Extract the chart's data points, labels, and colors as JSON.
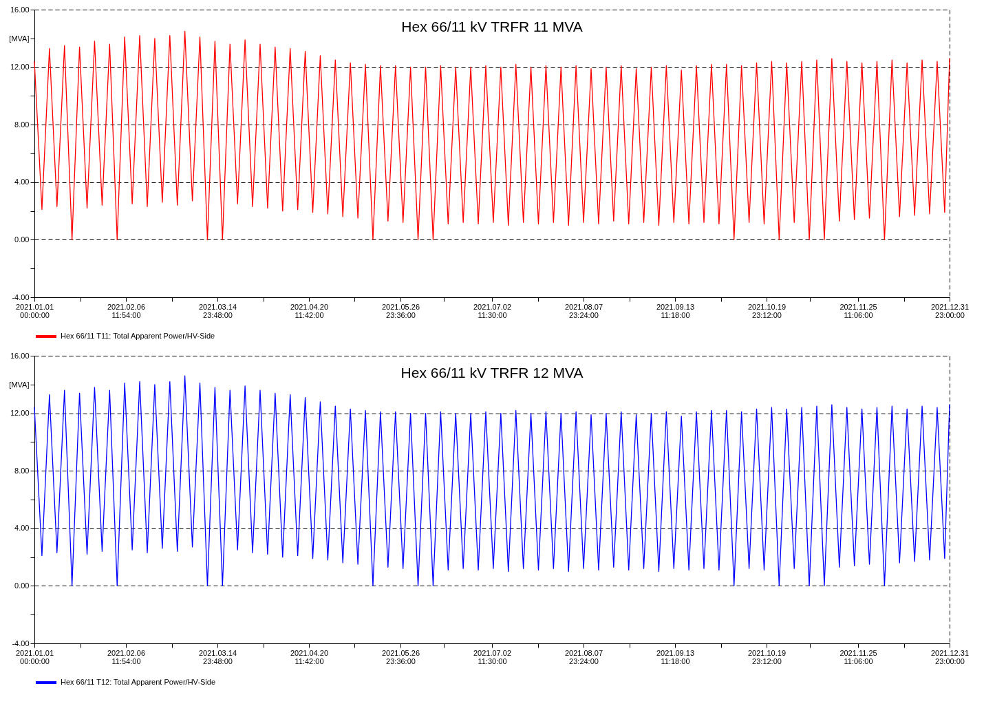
{
  "chart_data": [
    {
      "type": "line",
      "title": "Hex 66/11 kV TRFR 11 MVA",
      "ylabel": "[MVA]",
      "grid": true,
      "legend": "bottom left",
      "line_style": "solid",
      "xlim": [
        "2021-01-01T00:00",
        "2021-12-31T23:00"
      ],
      "ylim": [
        -4,
        16
      ],
      "xticks": [
        {
          "value": "2021-01-01T00:00",
          "label": "2021.01.01 00:00:00"
        },
        {
          "value": "2021-01-19T05:57",
          "label": null
        },
        {
          "value": "2021-02-06T11:54",
          "label": "2021.02.06 11:54:00"
        },
        {
          "value": "2021-02-24T17:51",
          "label": null
        },
        {
          "value": "2021-03-14T23:48",
          "label": "2021.03.14 23:48:00"
        },
        {
          "value": "2021-04-02T05:45",
          "label": null
        },
        {
          "value": "2021-04-20T11:42",
          "label": "2021.04.20 11:42:00"
        },
        {
          "value": "2021-05-08T17:39",
          "label": null
        },
        {
          "value": "2021-05-26T23:36",
          "label": "2021.05.26 23:36:00"
        },
        {
          "value": "2021-06-13T05:33",
          "label": null
        },
        {
          "value": "2021-07-02T11:30",
          "label": "2021.07.02 11:30:00"
        },
        {
          "value": "2021-07-20T17:27",
          "label": null
        },
        {
          "value": "2021-08-07T23:24",
          "label": "2021.08.07 23:24:00"
        },
        {
          "value": "2021-08-26T05:21",
          "label": null
        },
        {
          "value": "2021-09-13T11:18",
          "label": "2021.09.13 11:18:00"
        },
        {
          "value": "2021-10-01T17:15",
          "label": null
        },
        {
          "value": "2021-10-19T23:12",
          "label": "2021.10.19 23:12:00"
        },
        {
          "value": "2021-11-06T05:09",
          "label": null
        },
        {
          "value": "2021-11-25T11:06",
          "label": "2021.11.25 11:06:00"
        },
        {
          "value": "2021-12-13T17:03",
          "label": null
        },
        {
          "value": "2021-12-31T23:00",
          "label": "2021.12.31 23:00:00"
        }
      ],
      "yticks": [
        {
          "value": -4,
          "label": "-4.00"
        },
        {
          "value": -2,
          "label": null
        },
        {
          "value": 0,
          "label": "0.00"
        },
        {
          "value": 2,
          "label": null
        },
        {
          "value": 4,
          "label": "4.00"
        },
        {
          "value": 6,
          "label": null
        },
        {
          "value": 8,
          "label": "8.00"
        },
        {
          "value": 10,
          "label": null
        },
        {
          "value": 12,
          "label": "12.00"
        },
        {
          "value": 14,
          "label": null
        },
        {
          "value": 16,
          "label": "16.00"
        }
      ],
      "x": [
        "2021-01-01",
        "2021-01-04",
        "2021-01-07",
        "2021-01-10",
        "2021-01-13",
        "2021-01-16",
        "2021-01-19",
        "2021-01-22",
        "2021-01-25",
        "2021-01-28",
        "2021-01-31",
        "2021-02-03",
        "2021-02-06",
        "2021-02-09",
        "2021-02-12",
        "2021-02-15",
        "2021-02-18",
        "2021-02-21",
        "2021-02-24",
        "2021-02-27",
        "2021-03-02",
        "2021-03-05",
        "2021-03-08",
        "2021-03-11",
        "2021-03-14",
        "2021-03-17",
        "2021-03-20",
        "2021-03-23",
        "2021-03-26",
        "2021-03-29",
        "2021-04-01",
        "2021-04-04",
        "2021-04-07",
        "2021-04-10",
        "2021-04-13",
        "2021-04-16",
        "2021-04-19",
        "2021-04-22",
        "2021-04-25",
        "2021-04-28",
        "2021-05-01",
        "2021-05-04",
        "2021-05-07",
        "2021-05-10",
        "2021-05-13",
        "2021-05-16",
        "2021-05-19",
        "2021-05-22",
        "2021-05-25",
        "2021-05-28",
        "2021-05-31",
        "2021-06-03",
        "2021-06-06",
        "2021-06-09",
        "2021-06-12",
        "2021-06-15",
        "2021-06-18",
        "2021-06-21",
        "2021-06-24",
        "2021-06-27",
        "2021-06-30",
        "2021-07-03",
        "2021-07-06",
        "2021-07-09",
        "2021-07-12",
        "2021-07-15",
        "2021-07-18",
        "2021-07-21",
        "2021-07-24",
        "2021-07-27",
        "2021-07-30",
        "2021-08-02",
        "2021-08-05",
        "2021-08-08",
        "2021-08-11",
        "2021-08-14",
        "2021-08-17",
        "2021-08-20",
        "2021-08-23",
        "2021-08-26",
        "2021-08-29",
        "2021-09-01",
        "2021-09-04",
        "2021-09-07",
        "2021-09-10",
        "2021-09-13",
        "2021-09-16",
        "2021-09-19",
        "2021-09-22",
        "2021-09-25",
        "2021-09-28",
        "2021-10-01",
        "2021-10-04",
        "2021-10-07",
        "2021-10-10",
        "2021-10-13",
        "2021-10-16",
        "2021-10-19",
        "2021-10-22",
        "2021-10-25",
        "2021-10-28",
        "2021-10-31",
        "2021-11-03",
        "2021-11-06",
        "2021-11-09",
        "2021-11-12",
        "2021-11-15",
        "2021-11-18",
        "2021-11-21",
        "2021-11-24",
        "2021-11-27",
        "2021-11-30",
        "2021-12-03",
        "2021-12-06",
        "2021-12-09",
        "2021-12-12",
        "2021-12-15",
        "2021-12-18",
        "2021-12-21",
        "2021-12-24",
        "2021-12-27",
        "2021-12-30",
        "2021-12-31T23:00"
      ],
      "series": [
        {
          "name": "Hex 66/11 T11: Total Apparent Power/HV-Side",
          "color": "#ff0000",
          "values": [
            12.4,
            2.1,
            13.3,
            2.3,
            13.5,
            0,
            13.4,
            2.2,
            13.8,
            2.4,
            13.6,
            0,
            14.1,
            2.5,
            14.2,
            2.3,
            14.0,
            2.6,
            14.2,
            2.4,
            14.5,
            2.7,
            14.1,
            0,
            13.8,
            0,
            13.6,
            2.5,
            13.9,
            2.3,
            13.6,
            2.2,
            13.4,
            2.0,
            13.3,
            2.1,
            13.1,
            1.9,
            12.8,
            1.8,
            12.5,
            1.6,
            12.3,
            1.5,
            12.2,
            0,
            12.1,
            1.3,
            12.1,
            1.2,
            12.0,
            0,
            12.0,
            0,
            12.1,
            1.1,
            12.0,
            1.2,
            12.0,
            1.1,
            12.1,
            1.2,
            12.0,
            1.0,
            12.2,
            1.2,
            12.0,
            1.1,
            12.1,
            1.2,
            12.0,
            1.0,
            12.1,
            1.2,
            11.9,
            1.1,
            12.0,
            1.3,
            12.1,
            1.1,
            11.9,
            1.2,
            12.0,
            1.0,
            12.1,
            1.2,
            11.8,
            1.1,
            12.1,
            1.2,
            12.2,
            1.1,
            12.2,
            0,
            12.1,
            1.2,
            12.3,
            1.1,
            12.4,
            0,
            12.3,
            1.2,
            12.4,
            0,
            12.5,
            0,
            12.6,
            1.3,
            12.4,
            1.4,
            12.3,
            1.5,
            12.4,
            0,
            12.5,
            1.6,
            12.3,
            1.7,
            12.5,
            1.8,
            12.4,
            1.9,
            12.6
          ]
        }
      ]
    },
    {
      "type": "line",
      "title": "Hex 66/11 kV TRFR 12 MVA",
      "ylabel": "[MVA]",
      "grid": true,
      "legend": "bottom left",
      "line_style": "solid",
      "xlim": [
        "2021-01-01T00:00",
        "2021-12-31T23:00"
      ],
      "ylim": [
        -4,
        16
      ],
      "xticks": [
        {
          "value": "2021-01-01T00:00",
          "label": "2021.01.01 00:00:00"
        },
        {
          "value": "2021-01-19T05:57",
          "label": null
        },
        {
          "value": "2021-02-06T11:54",
          "label": "2021.02.06 11:54:00"
        },
        {
          "value": "2021-02-24T17:51",
          "label": null
        },
        {
          "value": "2021-03-14T23:48",
          "label": "2021.03.14 23:48:00"
        },
        {
          "value": "2021-04-02T05:45",
          "label": null
        },
        {
          "value": "2021-04-20T11:42",
          "label": "2021.04.20 11:42:00"
        },
        {
          "value": "2021-05-08T17:39",
          "label": null
        },
        {
          "value": "2021-05-26T23:36",
          "label": "2021.05.26 23:36:00"
        },
        {
          "value": "2021-06-13T05:33",
          "label": null
        },
        {
          "value": "2021-07-02T11:30",
          "label": "2021.07.02 11:30:00"
        },
        {
          "value": "2021-07-20T17:27",
          "label": null
        },
        {
          "value": "2021-08-07T23:24",
          "label": "2021.08.07 23:24:00"
        },
        {
          "value": "2021-08-26T05:21",
          "label": null
        },
        {
          "value": "2021-09-13T11:18",
          "label": "2021.09.13 11:18:00"
        },
        {
          "value": "2021-10-01T17:15",
          "label": null
        },
        {
          "value": "2021-10-19T23:12",
          "label": "2021.10.19 23:12:00"
        },
        {
          "value": "2021-11-06T05:09",
          "label": null
        },
        {
          "value": "2021-11-25T11:06",
          "label": "2021.11.25 11:06:00"
        },
        {
          "value": "2021-12-13T17:03",
          "label": null
        },
        {
          "value": "2021-12-31T23:00",
          "label": "2021.12.31 23:00:00"
        }
      ],
      "yticks": [
        {
          "value": -4,
          "label": "-4.00"
        },
        {
          "value": -2,
          "label": null
        },
        {
          "value": 0,
          "label": "0.00"
        },
        {
          "value": 2,
          "label": null
        },
        {
          "value": 4,
          "label": "4.00"
        },
        {
          "value": 6,
          "label": null
        },
        {
          "value": 8,
          "label": "8.00"
        },
        {
          "value": 10,
          "label": null
        },
        {
          "value": 12,
          "label": "12.00"
        },
        {
          "value": 14,
          "label": null
        },
        {
          "value": 16,
          "label": "16.00"
        }
      ],
      "x": [
        "2021-01-01",
        "2021-01-04",
        "2021-01-07",
        "2021-01-10",
        "2021-01-13",
        "2021-01-16",
        "2021-01-19",
        "2021-01-22",
        "2021-01-25",
        "2021-01-28",
        "2021-01-31",
        "2021-02-03",
        "2021-02-06",
        "2021-02-09",
        "2021-02-12",
        "2021-02-15",
        "2021-02-18",
        "2021-02-21",
        "2021-02-24",
        "2021-02-27",
        "2021-03-02",
        "2021-03-05",
        "2021-03-08",
        "2021-03-11",
        "2021-03-14",
        "2021-03-17",
        "2021-03-20",
        "2021-03-23",
        "2021-03-26",
        "2021-03-29",
        "2021-04-01",
        "2021-04-04",
        "2021-04-07",
        "2021-04-10",
        "2021-04-13",
        "2021-04-16",
        "2021-04-19",
        "2021-04-22",
        "2021-04-25",
        "2021-04-28",
        "2021-05-01",
        "2021-05-04",
        "2021-05-07",
        "2021-05-10",
        "2021-05-13",
        "2021-05-16",
        "2021-05-19",
        "2021-05-22",
        "2021-05-25",
        "2021-05-28",
        "2021-05-31",
        "2021-06-03",
        "2021-06-06",
        "2021-06-09",
        "2021-06-12",
        "2021-06-15",
        "2021-06-18",
        "2021-06-21",
        "2021-06-24",
        "2021-06-27",
        "2021-06-30",
        "2021-07-03",
        "2021-07-06",
        "2021-07-09",
        "2021-07-12",
        "2021-07-15",
        "2021-07-18",
        "2021-07-21",
        "2021-07-24",
        "2021-07-27",
        "2021-07-30",
        "2021-08-02",
        "2021-08-05",
        "2021-08-08",
        "2021-08-11",
        "2021-08-14",
        "2021-08-17",
        "2021-08-20",
        "2021-08-23",
        "2021-08-26",
        "2021-08-29",
        "2021-09-01",
        "2021-09-04",
        "2021-09-07",
        "2021-09-10",
        "2021-09-13",
        "2021-09-16",
        "2021-09-19",
        "2021-09-22",
        "2021-09-25",
        "2021-09-28",
        "2021-10-01",
        "2021-10-04",
        "2021-10-07",
        "2021-10-10",
        "2021-10-13",
        "2021-10-16",
        "2021-10-19",
        "2021-10-22",
        "2021-10-25",
        "2021-10-28",
        "2021-10-31",
        "2021-11-03",
        "2021-11-06",
        "2021-11-09",
        "2021-11-12",
        "2021-11-15",
        "2021-11-18",
        "2021-11-21",
        "2021-11-24",
        "2021-11-27",
        "2021-11-30",
        "2021-12-03",
        "2021-12-06",
        "2021-12-09",
        "2021-12-12",
        "2021-12-15",
        "2021-12-18",
        "2021-12-21",
        "2021-12-24",
        "2021-12-27",
        "2021-12-30",
        "2021-12-31T23:00"
      ],
      "series": [
        {
          "name": "Hex 66/11 T12: Total Apparent Power/HV-Side",
          "color": "#0000ff",
          "values": [
            12.4,
            2.1,
            13.3,
            2.3,
            13.6,
            0,
            13.4,
            2.2,
            13.8,
            2.4,
            13.6,
            0,
            14.1,
            2.5,
            14.2,
            2.3,
            14.0,
            2.6,
            14.2,
            2.4,
            14.6,
            2.7,
            14.1,
            0,
            13.8,
            0,
            13.6,
            2.5,
            13.9,
            2.3,
            13.6,
            2.2,
            13.4,
            2.0,
            13.3,
            2.1,
            13.1,
            1.9,
            12.8,
            1.8,
            12.5,
            1.6,
            12.3,
            1.5,
            12.2,
            0,
            12.1,
            1.3,
            12.1,
            1.2,
            12.0,
            0,
            12.0,
            0,
            12.1,
            1.1,
            12.0,
            1.2,
            12.0,
            1.1,
            12.1,
            1.2,
            12.0,
            1.0,
            12.2,
            1.2,
            12.0,
            1.1,
            12.1,
            1.2,
            12.0,
            1.0,
            12.1,
            1.2,
            11.9,
            1.1,
            12.0,
            1.3,
            12.1,
            1.1,
            11.9,
            1.2,
            12.0,
            1.0,
            12.1,
            1.2,
            11.8,
            1.1,
            12.1,
            1.2,
            12.2,
            1.1,
            12.2,
            0,
            12.1,
            1.2,
            12.3,
            1.1,
            12.4,
            0,
            12.3,
            1.2,
            12.4,
            0,
            12.5,
            0,
            12.6,
            1.3,
            12.4,
            1.4,
            12.3,
            1.5,
            12.4,
            0,
            12.5,
            1.6,
            12.3,
            1.7,
            12.5,
            1.8,
            12.4,
            1.9,
            12.6
          ]
        }
      ]
    }
  ]
}
